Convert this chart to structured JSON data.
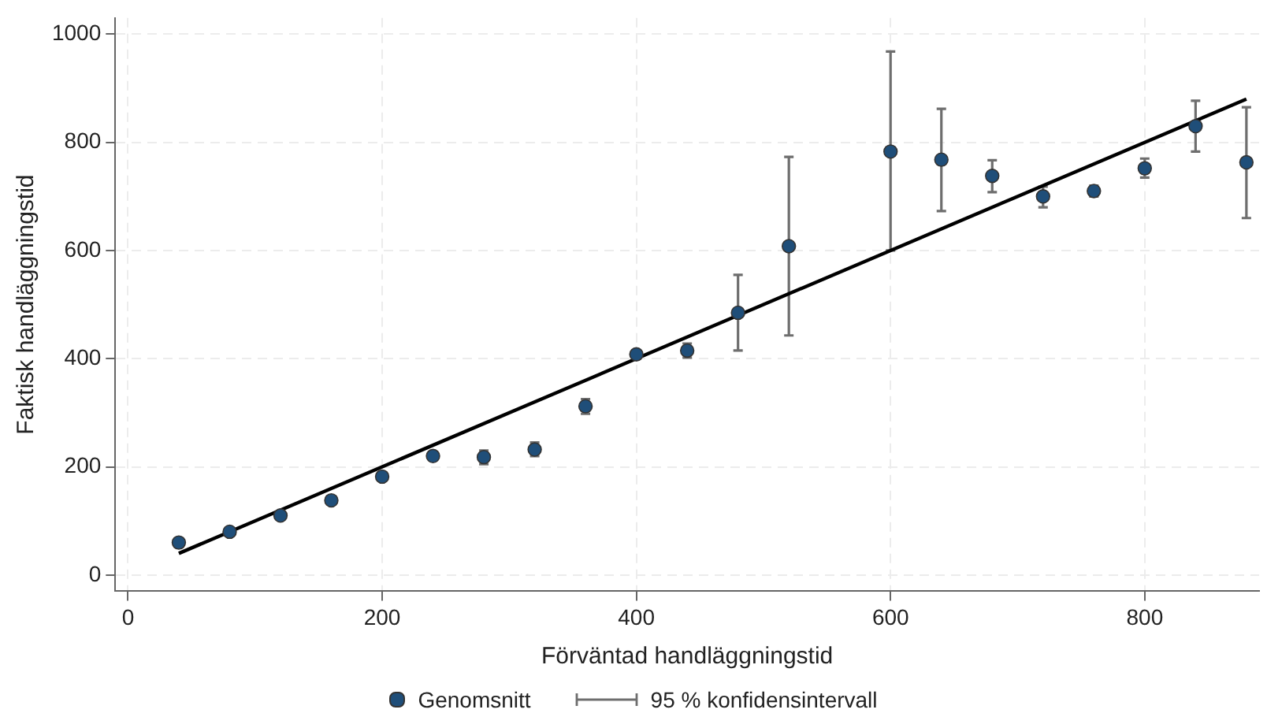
{
  "chart_data": {
    "type": "scatter",
    "xlabel": "Förväntad handläggningstid",
    "ylabel": "Faktisk handläggningstid",
    "xlim": [
      -10,
      890
    ],
    "ylim": [
      -30,
      1030
    ],
    "xticks": [
      0,
      200,
      400,
      600,
      800
    ],
    "yticks": [
      0,
      200,
      400,
      600,
      800,
      1000
    ],
    "grid": true,
    "legend": "bottom",
    "marker": "circle",
    "annotations": [
      "95 % konfidensintervall"
    ],
    "series": [
      {
        "name": "Genomsnitt",
        "color": "#1f4e79",
        "x": [
          40,
          80,
          120,
          160,
          200,
          240,
          280,
          320,
          360,
          400,
          440,
          480,
          520,
          600,
          640,
          680,
          720,
          760,
          800,
          840,
          880
        ],
        "values": [
          60,
          80,
          110,
          138,
          182,
          220,
          218,
          232,
          312,
          408,
          415,
          485,
          608,
          783,
          768,
          738,
          700,
          710,
          752,
          830,
          763
        ],
        "errors": [
          null,
          null,
          null,
          null,
          null,
          null,
          [
            205,
            230
          ],
          [
            220,
            245
          ],
          [
            298,
            325
          ],
          [
            400,
            414
          ],
          [
            402,
            428
          ],
          [
            415,
            555
          ],
          [
            443,
            773
          ],
          [
            600,
            968
          ],
          [
            673,
            862
          ],
          [
            708,
            767
          ],
          [
            680,
            718
          ],
          [
            700,
            720
          ],
          [
            735,
            770
          ],
          [
            783,
            877
          ],
          [
            660,
            865
          ]
        ]
      },
      {
        "type": "line",
        "color": "#000000",
        "x": [
          40,
          880
        ],
        "values": [
          40,
          880
        ],
        "marker": "none",
        "line_style": "solid"
      }
    ]
  }
}
